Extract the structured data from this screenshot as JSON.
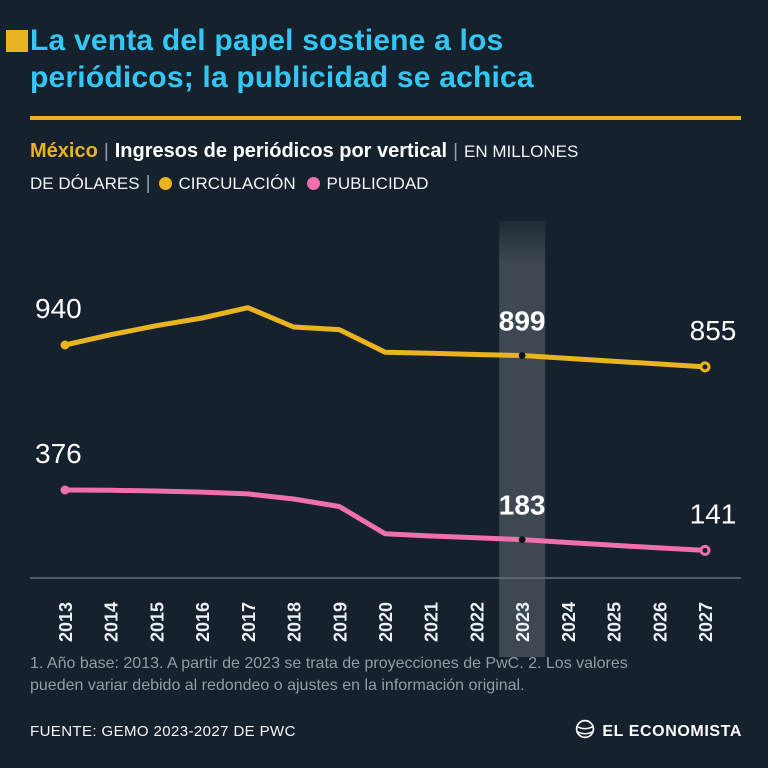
{
  "theme": {
    "background": "#15212c",
    "title_color": "#35c7f3",
    "accent_yellow": "#e9b41f",
    "accent_pink": "#f070ab",
    "muted_text": "#939ca4",
    "highlight_band": "rgba(223,230,236,0.20)"
  },
  "header": {
    "title_line1": "La venta del papel sostiene a los",
    "title_line2": "periódicos; la publicidad se achica"
  },
  "subtitle": {
    "region": "México",
    "sep": "|",
    "main": "Ingresos de periódicos por vertical",
    "units_line1": "EN MILLONES",
    "units_line2": "DE DÓLARES",
    "legend": [
      {
        "label": "CIRCULACIÓN",
        "color": "#e9b41f"
      },
      {
        "label": "PUBLICIDAD",
        "color": "#f070ab"
      }
    ]
  },
  "chart_data": {
    "type": "line",
    "title": "Ingresos de periódicos por vertical",
    "units": "En millones de dólares",
    "grid": false,
    "y_axis_shown": false,
    "x_label_rotation": -90,
    "x": [
      2013,
      2014,
      2015,
      2016,
      2017,
      2018,
      2019,
      2020,
      2021,
      2022,
      2023,
      2024,
      2025,
      2026,
      2027
    ],
    "highlight_year": 2023,
    "series": [
      {
        "name": "Circulación",
        "color": "#e9b41f",
        "values": [
          940,
          980,
          1015,
          1045,
          1085,
          1010,
          1000,
          912,
          908,
          903,
          899,
          888,
          877,
          866,
          855
        ],
        "point_labels": [
          {
            "index": 0,
            "text": "940",
            "bold": false
          },
          {
            "index": 10,
            "text": "899",
            "bold": true
          },
          {
            "index": 14,
            "text": "855",
            "bold": false
          }
        ]
      },
      {
        "name": "Publicidad",
        "color": "#f070ab",
        "values": [
          376,
          375,
          372,
          368,
          361,
          341,
          312,
          206,
          197,
          190,
          183,
          172,
          161,
          151,
          141
        ],
        "point_labels": [
          {
            "index": 0,
            "text": "376",
            "bold": false
          },
          {
            "index": 10,
            "text": "183",
            "bold": true
          },
          {
            "index": 14,
            "text": "141",
            "bold": false
          }
        ]
      }
    ]
  },
  "footnote": "1. Año base: 2013. A partir de 2023 se trata de proyecciones de PwC. 2. Los valores pueden variar debido al redondeo o ajustes en la información original.",
  "footer": {
    "source": "FUENTE: GEMO 2023-2027 DE PWC",
    "brand": "EL ECONOMISTA"
  }
}
